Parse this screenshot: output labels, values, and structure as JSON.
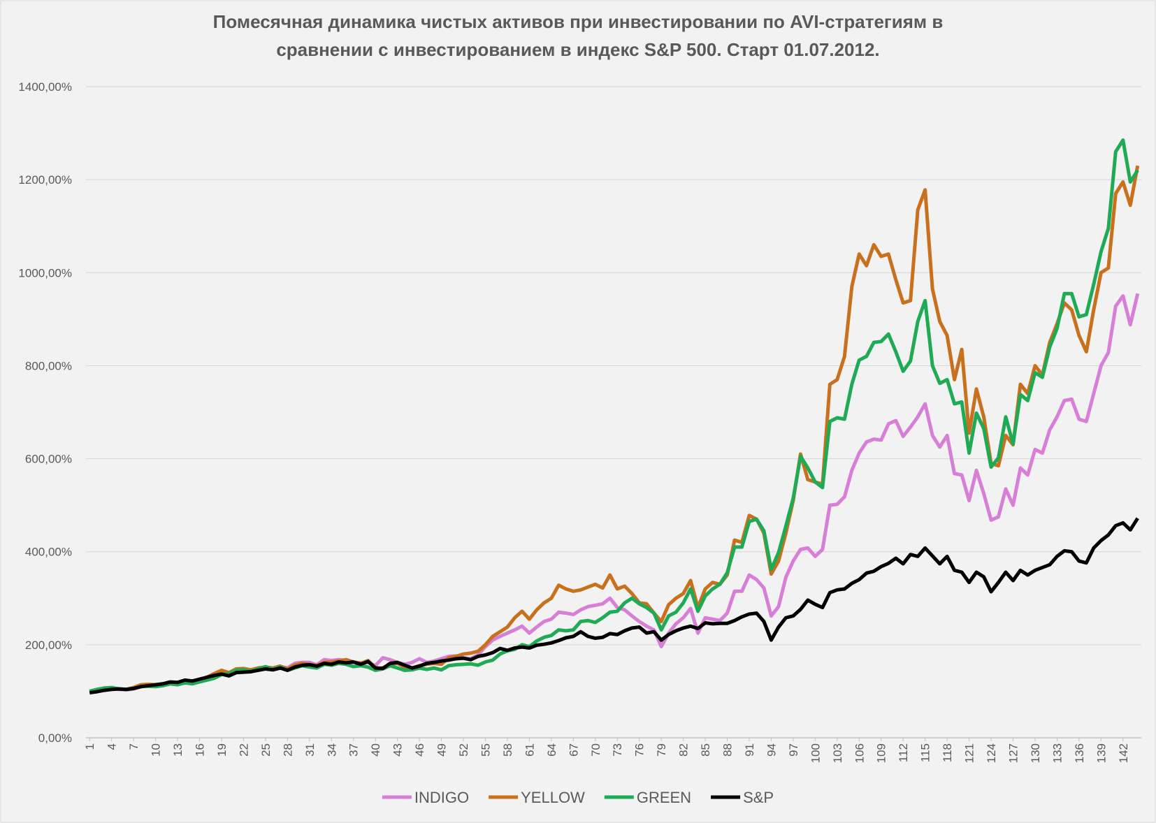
{
  "chart_data": {
    "type": "line",
    "title": [
      "Помесячная динамика чистых активов при инвестировании по AVI-стратегиям в",
      "сравнении с инвестированием в индекс S&P 500. Старт 01.07.2012."
    ],
    "x": [
      1,
      2,
      3,
      4,
      5,
      6,
      7,
      8,
      9,
      10,
      11,
      12,
      13,
      14,
      15,
      16,
      17,
      18,
      19,
      20,
      21,
      22,
      23,
      24,
      25,
      26,
      27,
      28,
      29,
      30,
      31,
      32,
      33,
      34,
      35,
      36,
      37,
      38,
      39,
      40,
      41,
      42,
      43,
      44,
      45,
      46,
      47,
      48,
      49,
      50,
      51,
      52,
      53,
      54,
      55,
      56,
      57,
      58,
      59,
      60,
      61,
      62,
      63,
      64,
      65,
      66,
      67,
      68,
      69,
      70,
      71,
      72,
      73,
      74,
      75,
      76,
      77,
      78,
      79,
      80,
      81,
      82,
      83,
      84,
      85,
      86,
      87,
      88,
      89,
      90,
      91,
      92,
      93,
      94,
      95,
      96,
      97,
      98,
      99,
      100,
      101,
      102,
      103,
      104,
      105,
      106,
      107,
      108,
      109,
      110,
      111,
      112,
      113,
      114,
      115,
      116,
      117,
      118,
      119,
      120,
      121,
      122,
      123,
      124,
      125,
      126,
      127,
      128,
      129,
      130,
      131,
      132,
      133,
      134,
      135,
      136,
      137,
      138,
      139,
      140,
      141,
      142,
      143,
      144
    ],
    "xlim": [
      0.5,
      144.5
    ],
    "xticks": [
      1,
      4,
      7,
      10,
      13,
      16,
      19,
      22,
      25,
      28,
      31,
      34,
      37,
      40,
      43,
      46,
      49,
      52,
      55,
      58,
      61,
      64,
      67,
      70,
      73,
      76,
      79,
      82,
      85,
      88,
      91,
      94,
      97,
      100,
      103,
      106,
      109,
      112,
      115,
      118,
      121,
      124,
      127,
      130,
      133,
      136,
      139,
      142
    ],
    "ylim": [
      0,
      1400
    ],
    "yticks": [
      {
        "value": 0,
        "label": "0,00%"
      },
      {
        "value": 200,
        "label": "200,00%"
      },
      {
        "value": 400,
        "label": "400,00%"
      },
      {
        "value": 600,
        "label": "600,00%"
      },
      {
        "value": 800,
        "label": "800,00%"
      },
      {
        "value": 1000,
        "label": "1000,00%"
      },
      {
        "value": 1200,
        "label": "1200,00%"
      },
      {
        "value": 1400,
        "label": "1400,00%"
      }
    ],
    "grid": true,
    "legend": "bottom",
    "series": [
      {
        "name": "INDIGO",
        "color": "#d77fd6",
        "values": [
          96,
          100,
          103,
          105,
          104,
          103,
          105,
          110,
          112,
          111,
          113,
          117,
          115,
          119,
          118,
          122,
          127,
          133,
          140,
          138,
          146,
          146,
          144,
          148,
          150,
          148,
          153,
          150,
          160,
          162,
          162,
          157,
          168,
          166,
          168,
          166,
          162,
          161,
          162,
          155,
          172,
          168,
          162,
          158,
          162,
          170,
          162,
          165,
          170,
          175,
          176,
          172,
          170,
          178,
          196,
          210,
          218,
          225,
          232,
          240,
          225,
          238,
          250,
          255,
          270,
          268,
          265,
          275,
          282,
          285,
          288,
          300,
          280,
          275,
          262,
          250,
          240,
          232,
          196,
          225,
          245,
          258,
          278,
          225,
          258,
          255,
          252,
          268,
          315,
          315,
          350,
          340,
          322,
          262,
          282,
          345,
          380,
          405,
          408,
          390,
          405,
          500,
          502,
          518,
          575,
          612,
          636,
          642,
          640,
          675,
          682,
          648,
          668,
          690,
          718,
          650,
          625,
          650,
          568,
          565,
          510,
          575,
          525,
          468,
          475,
          535,
          500,
          580,
          565,
          620,
          612,
          662,
          690,
          725,
          728,
          685,
          680,
          740,
          800,
          828,
          928,
          950,
          888,
          955
        ]
      },
      {
        "name": "YELLOW",
        "color": "#c8701c",
        "values": [
          98,
          101,
          104,
          106,
          105,
          104,
          108,
          114,
          115,
          114,
          116,
          118,
          117,
          120,
          120,
          124,
          130,
          138,
          145,
          140,
          148,
          149,
          146,
          150,
          152,
          150,
          154,
          148,
          156,
          160,
          158,
          155,
          162,
          163,
          165,
          168,
          163,
          160,
          166,
          150,
          150,
          158,
          160,
          152,
          150,
          155,
          158,
          160,
          158,
          172,
          175,
          180,
          182,
          186,
          200,
          218,
          228,
          238,
          258,
          272,
          255,
          275,
          290,
          300,
          328,
          320,
          315,
          318,
          324,
          330,
          322,
          350,
          320,
          326,
          310,
          290,
          288,
          268,
          250,
          286,
          300,
          310,
          338,
          280,
          320,
          334,
          330,
          350,
          425,
          420,
          478,
          470,
          440,
          352,
          380,
          440,
          510,
          610,
          555,
          550,
          545,
          760,
          770,
          820,
          970,
          1040,
          1015,
          1060,
          1035,
          1040,
          985,
          935,
          940,
          1135,
          1178,
          965,
          895,
          865,
          770,
          835,
          655,
          750,
          690,
          590,
          585,
          650,
          630,
          760,
          740,
          800,
          780,
          850,
          890,
          935,
          920,
          865,
          830,
          920,
          1000,
          1010,
          1170,
          1195,
          1145,
          1230
        ]
      },
      {
        "name": "GREEN",
        "color": "#1faa55",
        "values": [
          100,
          104,
          107,
          108,
          105,
          104,
          106,
          110,
          111,
          110,
          112,
          116,
          114,
          118,
          116,
          120,
          124,
          128,
          136,
          138,
          145,
          146,
          143,
          148,
          153,
          147,
          152,
          145,
          150,
          155,
          152,
          150,
          158,
          156,
          160,
          158,
          153,
          155,
          152,
          145,
          148,
          155,
          150,
          145,
          146,
          150,
          147,
          150,
          146,
          155,
          157,
          158,
          159,
          156,
          163,
          167,
          180,
          187,
          190,
          200,
          196,
          208,
          216,
          220,
          232,
          230,
          232,
          250,
          252,
          248,
          258,
          270,
          272,
          290,
          300,
          288,
          280,
          268,
          232,
          262,
          270,
          290,
          320,
          272,
          305,
          320,
          330,
          355,
          410,
          410,
          465,
          470,
          445,
          362,
          398,
          455,
          515,
          605,
          580,
          550,
          538,
          680,
          688,
          685,
          760,
          812,
          820,
          850,
          852,
          868,
          830,
          788,
          810,
          895,
          940,
          800,
          762,
          770,
          718,
          722,
          612,
          698,
          665,
          582,
          602,
          690,
          632,
          738,
          725,
          785,
          775,
          840,
          880,
          955,
          955,
          905,
          910,
          975,
          1045,
          1095,
          1260,
          1285,
          1195,
          1220
        ]
      },
      {
        "name": "S&P",
        "color": "#000000",
        "values": [
          97,
          99,
          102,
          104,
          105,
          104,
          106,
          110,
          112,
          114,
          116,
          120,
          119,
          124,
          122,
          126,
          130,
          134,
          137,
          133,
          140,
          141,
          142,
          145,
          148,
          146,
          150,
          145,
          152,
          156,
          157,
          154,
          160,
          158,
          163,
          161,
          163,
          158,
          164,
          150,
          149,
          160,
          162,
          156,
          150,
          154,
          160,
          162,
          165,
          167,
          170,
          171,
          168,
          175,
          178,
          183,
          192,
          188,
          193,
          195,
          193,
          199,
          201,
          204,
          209,
          215,
          218,
          228,
          218,
          214,
          216,
          224,
          222,
          230,
          236,
          238,
          225,
          228,
          210,
          222,
          230,
          236,
          240,
          235,
          247,
          245,
          246,
          246,
          252,
          260,
          266,
          268,
          250,
          210,
          238,
          258,
          262,
          276,
          296,
          287,
          280,
          312,
          318,
          320,
          332,
          340,
          354,
          358,
          368,
          375,
          386,
          374,
          394,
          390,
          408,
          391,
          374,
          390,
          360,
          356,
          334,
          356,
          346,
          314,
          334,
          356,
          338,
          360,
          350,
          360,
          366,
          372,
          390,
          402,
          400,
          380,
          376,
          408,
          424,
          436,
          456,
          462,
          447,
          472
        ]
      }
    ]
  }
}
